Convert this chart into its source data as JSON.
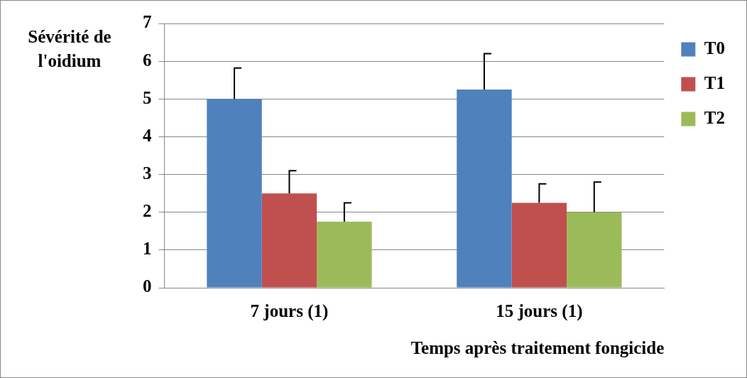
{
  "chart_data": {
    "type": "bar",
    "ylabel": "Sévérité de l'oidium",
    "xlabel": "Temps après traitement fongicide",
    "categories": [
      "7 jours (1)",
      "15 jours (1)"
    ],
    "series": [
      {
        "name": "T0",
        "color": "#4f81bd",
        "values": [
          5,
          5.25
        ],
        "errors": [
          [
            5,
            5.82
          ],
          [
            5.25,
            6.2
          ]
        ]
      },
      {
        "name": "T1",
        "color": "#c0504d",
        "values": [
          2.5,
          2.25
        ],
        "errors": [
          [
            2.5,
            3.1
          ],
          [
            2.25,
            2.75
          ]
        ]
      },
      {
        "name": "T2",
        "color": "#9bbb59",
        "values": [
          1.75,
          2
        ],
        "errors": [
          [
            1.75,
            2.25
          ],
          [
            2,
            2.8
          ]
        ]
      }
    ],
    "ylim": [
      0,
      7
    ],
    "yticks": [
      0,
      1,
      2,
      3,
      4,
      5,
      6,
      7
    ],
    "grid": "y",
    "legend": "right"
  }
}
